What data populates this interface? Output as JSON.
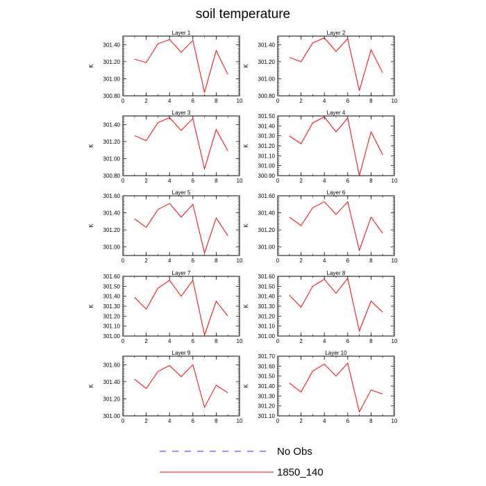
{
  "title": "soil temperature",
  "legend": [
    {
      "label": "No Obs",
      "color": "#2b2bff",
      "style": "dashed"
    },
    {
      "label": "1850_140",
      "color": "#ff0000",
      "style": "solid"
    }
  ],
  "chart_data": [
    {
      "type": "line",
      "title": "Layer 1",
      "ylabel": "K",
      "xlim": [
        0,
        10
      ],
      "ylim": [
        300.8,
        301.5
      ],
      "xticks": [
        0,
        2,
        4,
        6,
        8,
        10
      ],
      "yticks": [
        300.8,
        301.0,
        301.2,
        301.4
      ],
      "x": [
        1,
        2,
        3,
        4,
        5,
        6,
        7,
        8,
        9
      ],
      "series": [
        {
          "name": "1850_140",
          "values": [
            301.23,
            301.19,
            301.41,
            301.46,
            301.31,
            301.45,
            300.84,
            301.33,
            301.05
          ]
        }
      ]
    },
    {
      "type": "line",
      "title": "Layer 2",
      "ylabel": "K",
      "xlim": [
        0,
        10
      ],
      "ylim": [
        300.8,
        301.5
      ],
      "xticks": [
        0,
        2,
        4,
        6,
        8,
        10
      ],
      "yticks": [
        300.8,
        301.0,
        301.2,
        301.4
      ],
      "x": [
        1,
        2,
        3,
        4,
        5,
        6,
        7,
        8,
        9
      ],
      "series": [
        {
          "name": "1850_140",
          "values": [
            301.25,
            301.2,
            301.42,
            301.48,
            301.32,
            301.47,
            300.86,
            301.34,
            301.07
          ]
        }
      ]
    },
    {
      "type": "line",
      "title": "Layer 3",
      "ylabel": "K",
      "xlim": [
        0,
        10
      ],
      "ylim": [
        300.8,
        301.5
      ],
      "xticks": [
        0,
        2,
        4,
        6,
        8,
        10
      ],
      "yticks": [
        300.8,
        301.0,
        301.2,
        301.4
      ],
      "x": [
        1,
        2,
        3,
        4,
        5,
        6,
        7,
        8,
        9
      ],
      "series": [
        {
          "name": "1850_140",
          "values": [
            301.27,
            301.21,
            301.42,
            301.48,
            301.33,
            301.47,
            300.88,
            301.34,
            301.09
          ]
        }
      ]
    },
    {
      "type": "line",
      "title": "Layer 4",
      "ylabel": "K",
      "xlim": [
        0,
        10
      ],
      "ylim": [
        300.9,
        301.5
      ],
      "xticks": [
        0,
        2,
        4,
        6,
        8,
        10
      ],
      "yticks": [
        300.9,
        301.0,
        301.1,
        301.2,
        301.3,
        301.4,
        301.5
      ],
      "x": [
        1,
        2,
        3,
        4,
        5,
        6,
        7,
        8,
        9
      ],
      "series": [
        {
          "name": "1850_140",
          "values": [
            301.3,
            301.22,
            301.43,
            301.49,
            301.34,
            301.48,
            300.9,
            301.34,
            301.11
          ]
        }
      ]
    },
    {
      "type": "line",
      "title": "Layer 5",
      "ylabel": "K",
      "xlim": [
        0,
        10
      ],
      "ylim": [
        300.9,
        301.6
      ],
      "xticks": [
        0,
        2,
        4,
        6,
        8,
        10
      ],
      "yticks": [
        301.0,
        301.2,
        301.4,
        301.6
      ],
      "x": [
        1,
        2,
        3,
        4,
        5,
        6,
        7,
        8,
        9
      ],
      "series": [
        {
          "name": "1850_140",
          "values": [
            301.33,
            301.23,
            301.44,
            301.51,
            301.35,
            301.5,
            300.93,
            301.34,
            301.13
          ]
        }
      ]
    },
    {
      "type": "line",
      "title": "Layer 6",
      "ylabel": "K",
      "xlim": [
        0,
        10
      ],
      "ylim": [
        300.9,
        301.6
      ],
      "xticks": [
        0,
        2,
        4,
        6,
        8,
        10
      ],
      "yticks": [
        301.0,
        301.2,
        301.4,
        301.6
      ],
      "x": [
        1,
        2,
        3,
        4,
        5,
        6,
        7,
        8,
        9
      ],
      "series": [
        {
          "name": "1850_140",
          "values": [
            301.35,
            301.25,
            301.46,
            301.53,
            301.38,
            301.53,
            300.96,
            301.35,
            301.16
          ]
        }
      ]
    },
    {
      "type": "line",
      "title": "Layer 7",
      "ylabel": "K",
      "xlim": [
        0,
        10
      ],
      "ylim": [
        301.0,
        301.6
      ],
      "xticks": [
        0,
        2,
        4,
        6,
        8,
        10
      ],
      "yticks": [
        301.0,
        301.1,
        301.2,
        301.3,
        301.4,
        301.5,
        301.6
      ],
      "x": [
        1,
        2,
        3,
        4,
        5,
        6,
        7,
        8,
        9
      ],
      "series": [
        {
          "name": "1850_140",
          "values": [
            301.39,
            301.27,
            301.48,
            301.56,
            301.4,
            301.56,
            301.01,
            301.35,
            301.2
          ]
        }
      ]
    },
    {
      "type": "line",
      "title": "Layer 8",
      "ylabel": "K",
      "xlim": [
        0,
        10
      ],
      "ylim": [
        301.0,
        301.6
      ],
      "xticks": [
        0,
        2,
        4,
        6,
        8,
        10
      ],
      "yticks": [
        301.0,
        301.1,
        301.2,
        301.3,
        301.4,
        301.5,
        301.6
      ],
      "x": [
        1,
        2,
        3,
        4,
        5,
        6,
        7,
        8,
        9
      ],
      "series": [
        {
          "name": "1850_140",
          "values": [
            301.41,
            301.29,
            301.5,
            301.57,
            301.43,
            301.58,
            301.05,
            301.35,
            301.24
          ]
        }
      ]
    },
    {
      "type": "line",
      "title": "Layer 9",
      "ylabel": "K",
      "xlim": [
        0,
        10
      ],
      "ylim": [
        301.0,
        301.7
      ],
      "xticks": [
        0,
        2,
        4,
        6,
        8,
        10
      ],
      "yticks": [
        301.0,
        301.2,
        301.4,
        301.6
      ],
      "x": [
        1,
        2,
        3,
        4,
        5,
        6,
        7,
        8,
        9
      ],
      "series": [
        {
          "name": "1850_140",
          "values": [
            301.43,
            301.32,
            301.52,
            301.59,
            301.46,
            301.6,
            301.1,
            301.36,
            301.27
          ]
        }
      ]
    },
    {
      "type": "line",
      "title": "Layer 10",
      "ylabel": "K",
      "xlim": [
        0,
        10
      ],
      "ylim": [
        301.1,
        301.7
      ],
      "xticks": [
        0,
        2,
        4,
        6,
        8,
        10
      ],
      "yticks": [
        301.1,
        301.2,
        301.3,
        301.4,
        301.5,
        301.6,
        301.7
      ],
      "x": [
        1,
        2,
        3,
        4,
        5,
        6,
        7,
        8,
        9
      ],
      "series": [
        {
          "name": "1850_140",
          "values": [
            301.43,
            301.34,
            301.55,
            301.62,
            301.5,
            301.63,
            301.14,
            301.36,
            301.32
          ]
        }
      ]
    }
  ]
}
